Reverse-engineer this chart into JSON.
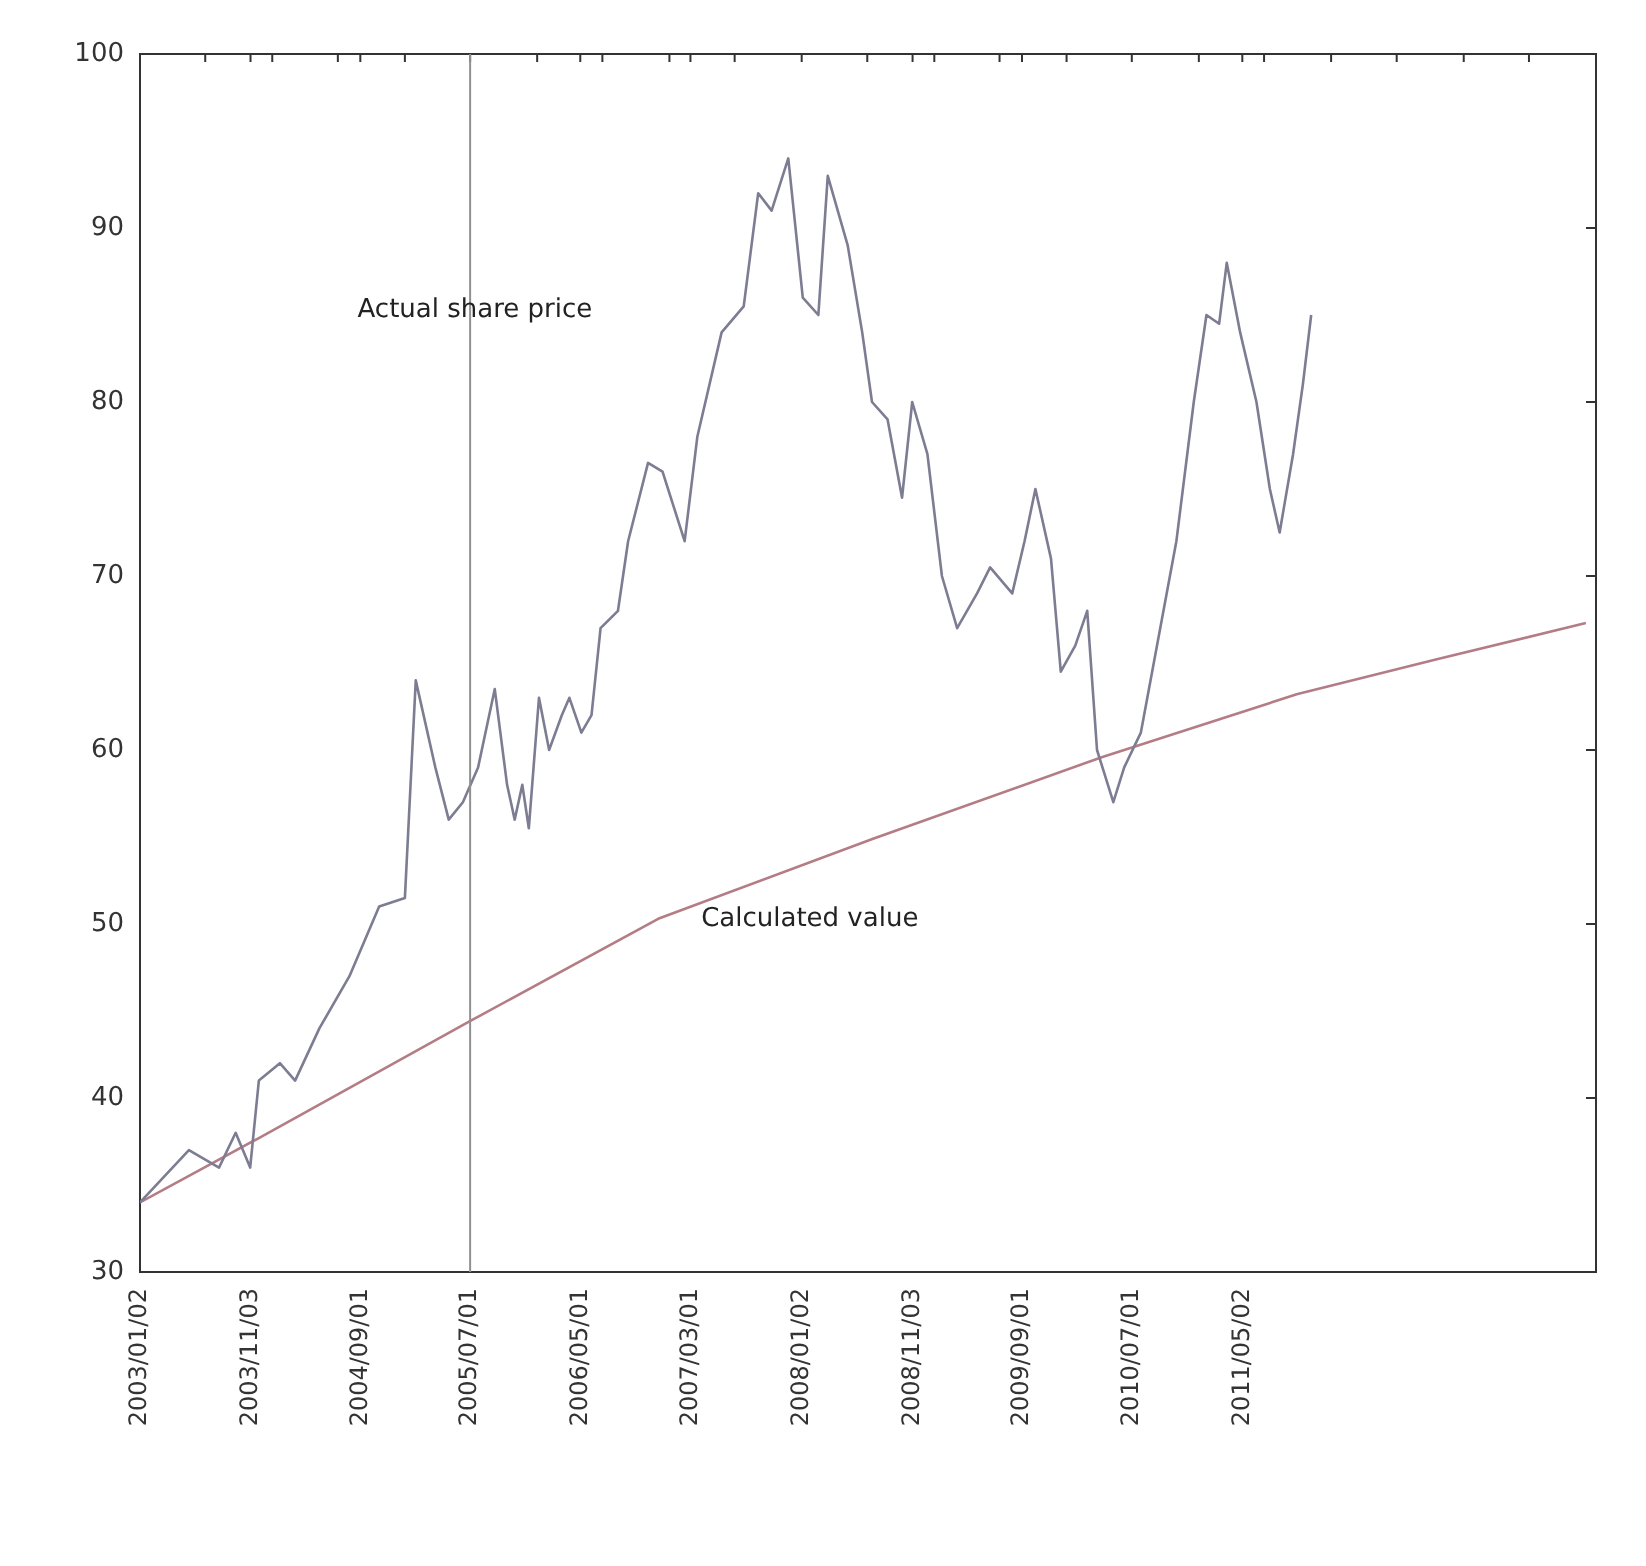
{
  "chart_data": {
    "type": "line",
    "xlim": [
      "2003-01-02",
      "2014-01-02"
    ],
    "xticks": [
      {
        "value": "2003-01-02",
        "label": "2003/01/02"
      },
      {
        "value": "2003-07-01",
        "label": null
      },
      {
        "value": "2003-11-03",
        "label": "2003/11/03"
      },
      {
        "value": "2004-01-02",
        "label": null
      },
      {
        "value": "2004-07-01",
        "label": null
      },
      {
        "value": "2004-09-01",
        "label": "2004/09/01"
      },
      {
        "value": "2005-01-02",
        "label": null
      },
      {
        "value": "2005-07-01",
        "label": "2005/07/01"
      },
      {
        "value": "2006-01-02",
        "label": null
      },
      {
        "value": "2006-05-01",
        "label": "2006/05/01"
      },
      {
        "value": "2006-07-01",
        "label": null
      },
      {
        "value": "2007-01-02",
        "label": null
      },
      {
        "value": "2007-03-01",
        "label": "2007/03/01"
      },
      {
        "value": "2007-07-01",
        "label": null
      },
      {
        "value": "2008-01-02",
        "label": "2008/01/02"
      },
      {
        "value": "2008-07-01",
        "label": null
      },
      {
        "value": "2008-11-03",
        "label": "2008/11/03"
      },
      {
        "value": "2009-01-02",
        "label": null
      },
      {
        "value": "2009-07-01",
        "label": null
      },
      {
        "value": "2009-09-01",
        "label": "2009/09/01"
      },
      {
        "value": "2010-01-02",
        "label": null
      },
      {
        "value": "2010-07-01",
        "label": "2010/07/01"
      },
      {
        "value": "2011-01-02",
        "label": null
      },
      {
        "value": "2011-05-02",
        "label": "2011/05/02"
      },
      {
        "value": "2011-07-01",
        "label": null
      },
      {
        "value": "2012-01-02",
        "label": null
      },
      {
        "value": "2012-07-01",
        "label": null
      },
      {
        "value": "2013-01-02",
        "label": null
      },
      {
        "value": "2013-07-01",
        "label": null
      }
    ],
    "ylim": [
      30,
      100
    ],
    "yticks": [
      30,
      40,
      50,
      60,
      70,
      80,
      90,
      100
    ],
    "grid": false,
    "legend": false,
    "marker": "none",
    "line_style": "solid",
    "ref_lines": [
      {
        "axis": "x",
        "value": "2005-07-01",
        "color": "#909090"
      }
    ],
    "annotations": [
      "Actual share price",
      "Calculated value"
    ],
    "series": [
      {
        "color": "#7c7c92",
        "x": [
          "2003-01-02",
          "2003-05-17",
          "2003-08-08",
          "2003-09-23",
          "2003-11-02",
          "2003-11-26",
          "2004-01-23",
          "2004-03-05",
          "2004-05-11",
          "2004-08-02",
          "2004-10-23",
          "2005-01-02",
          "2005-02-01",
          "2005-03-27",
          "2005-05-03",
          "2005-06-11",
          "2005-07-23",
          "2005-09-07",
          "2005-10-11",
          "2005-11-01",
          "2005-11-22",
          "2005-12-10",
          "2006-01-07",
          "2006-02-04",
          "2006-03-11",
          "2006-04-01",
          "2006-05-04",
          "2006-06-01",
          "2006-06-26",
          "2006-08-13",
          "2006-09-10",
          "2006-11-04",
          "2006-12-14",
          "2007-02-13",
          "2007-03-20",
          "2007-05-26",
          "2007-07-26",
          "2007-09-04",
          "2007-10-11",
          "2007-11-26",
          "2008-01-05",
          "2008-02-17",
          "2008-03-14",
          "2008-05-08",
          "2008-06-17",
          "2008-07-14",
          "2008-08-26",
          "2008-10-05",
          "2008-11-02",
          "2008-12-14",
          "2009-01-23",
          "2009-03-06",
          "2009-04-30",
          "2009-06-05",
          "2009-08-05",
          "2009-09-08",
          "2009-10-08",
          "2009-11-20",
          "2009-12-17",
          "2010-01-26",
          "2010-02-28",
          "2010-03-27",
          "2010-05-11",
          "2010-06-10",
          "2010-07-26",
          "2010-11-01",
          "2010-12-19",
          "2011-01-23",
          "2011-02-27",
          "2011-03-20",
          "2011-04-26",
          "2011-06-10",
          "2011-07-17",
          "2011-08-13",
          "2011-09-19",
          "2011-10-16",
          "2011-11-08"
        ],
        "values": [
          34,
          37,
          36,
          38,
          36,
          41,
          42,
          41,
          44,
          47,
          51,
          51.5,
          64,
          59,
          56,
          57,
          59,
          63.5,
          58,
          56,
          58,
          55.5,
          63,
          60,
          62,
          63,
          61,
          62,
          67,
          68,
          72,
          76.5,
          76,
          72,
          78,
          84,
          85.5,
          92,
          91,
          94,
          86,
          85,
          93,
          89,
          84,
          80,
          79,
          74.5,
          80,
          77,
          70,
          67,
          69,
          70.5,
          69,
          72,
          75,
          71,
          64.5,
          66,
          68,
          60,
          57,
          59,
          61,
          72,
          80,
          85,
          84.5,
          88,
          84,
          80,
          75,
          72.5,
          77,
          81,
          85
        ]
      },
      {
        "color": "#b47c84",
        "x": [
          "2003-01-02",
          "2003-11-26",
          "2005-07-08",
          "2006-12-02",
          "2008-07-17",
          "2010-04-11",
          "2011-09-29",
          "2012-10-17",
          "2013-12-05"
        ],
        "values": [
          34,
          37.7,
          44.5,
          50.3,
          54.9,
          59.6,
          63.2,
          65.2,
          67.3
        ]
      }
    ]
  }
}
